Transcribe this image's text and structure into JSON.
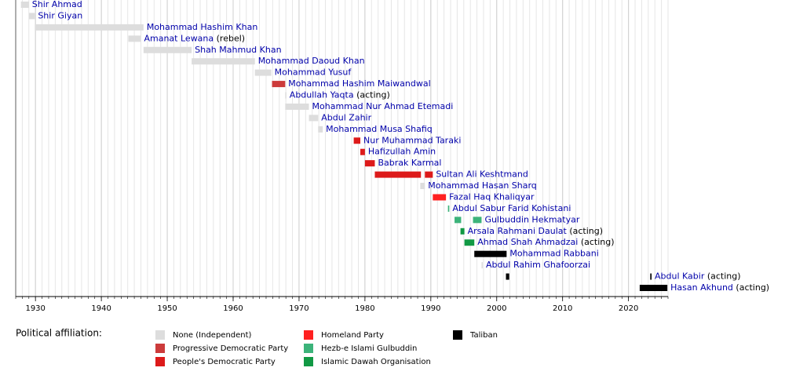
{
  "chart_data": {
    "type": "timeline",
    "xlim": [
      1927,
      2026
    ],
    "xticks": [
      1930,
      1940,
      1950,
      1960,
      1970,
      1980,
      1990,
      2000,
      2010,
      2020
    ],
    "grid": true,
    "legend_title": "Political affiliation:",
    "legend": [
      {
        "name": "None (Independent)",
        "color": "#dddddd"
      },
      {
        "name": "Progressive Democratic Party",
        "color": "#cc3b3b"
      },
      {
        "name": "People's Democratic Party",
        "color": "#dd1a1a"
      },
      {
        "name": "Homeland Party",
        "color": "#ff2020"
      },
      {
        "name": "Hezb-e Islami Gulbuddin",
        "color": "#3cb37a"
      },
      {
        "name": "Islamic Dawah Organisation",
        "color": "#119944"
      },
      {
        "name": "Taliban",
        "color": "#000000"
      }
    ],
    "series": [
      {
        "name": "Shir Ahmad",
        "color": "#dddddd",
        "ranges": [
          [
            1927.8,
            1929.0
          ]
        ]
      },
      {
        "name": "Shir Giyan",
        "color": "#dddddd",
        "ranges": [
          [
            1929.0,
            1929.9
          ]
        ]
      },
      {
        "name": "Mohammad Hashim Khan",
        "color": "#dddddd",
        "ranges": [
          [
            1929.9,
            1946.4
          ]
        ]
      },
      {
        "name": "Amanat Lewana",
        "note": "(rebel)",
        "color": "#dddddd",
        "ranges": [
          [
            1944.1,
            1946.0
          ]
        ]
      },
      {
        "name": "Shah Mahmud Khan",
        "color": "#dddddd",
        "ranges": [
          [
            1946.4,
            1953.7
          ]
        ]
      },
      {
        "name": "Mohammad Daoud Khan",
        "color": "#dddddd",
        "ranges": [
          [
            1953.7,
            1963.3
          ]
        ]
      },
      {
        "name": "Mohammad Yusuf",
        "color": "#dddddd",
        "ranges": [
          [
            1963.3,
            1965.8
          ]
        ]
      },
      {
        "name": "Mohammad Hashim Maiwandwal",
        "color": "#cc3b3b",
        "ranges": [
          [
            1965.9,
            1967.9
          ]
        ]
      },
      {
        "name": "Abdullah Yaqta",
        "note": "(acting)",
        "color": "#dddddd",
        "ranges": [
          [
            1967.9,
            1968.0
          ]
        ]
      },
      {
        "name": "Mohammad Nur Ahmad Etemadi",
        "color": "#dddddd",
        "ranges": [
          [
            1967.9,
            1971.5
          ]
        ]
      },
      {
        "name": "Abdul Zahir",
        "color": "#dddddd",
        "ranges": [
          [
            1971.5,
            1972.9
          ]
        ]
      },
      {
        "name": "Mohammad Musa Shafiq",
        "color": "#dddddd",
        "ranges": [
          [
            1972.9,
            1973.6
          ]
        ]
      },
      {
        "name": "Nur Muhammad Taraki",
        "color": "#dd1a1a",
        "ranges": [
          [
            1978.3,
            1979.3
          ]
        ]
      },
      {
        "name": "Hafizullah Amin",
        "color": "#dd1a1a",
        "ranges": [
          [
            1979.3,
            1980.0
          ]
        ]
      },
      {
        "name": "Babrak Karmal",
        "color": "#dd1a1a",
        "ranges": [
          [
            1980.0,
            1981.5
          ]
        ]
      },
      {
        "name": "Sultan Ali Keshtmand",
        "color": "#dd1a1a",
        "ranges": [
          [
            1981.5,
            1988.5
          ],
          [
            1989.1,
            1990.3
          ]
        ]
      },
      {
        "name": "Mohammad Hasan Sharq",
        "color": "#dddddd",
        "ranges": [
          [
            1988.4,
            1989.1
          ]
        ]
      },
      {
        "name": "Fazal Haq Khaliqyar",
        "color": "#ff2020",
        "ranges": [
          [
            1990.3,
            1992.3
          ]
        ]
      },
      {
        "name": "Abdul Sabur Farid Kohistani",
        "color": "#3cb37a",
        "ranges": [
          [
            1992.6,
            1992.8
          ]
        ]
      },
      {
        "name": "Gulbuddin Hekmatyar",
        "color": "#3cb37a",
        "ranges": [
          [
            1993.6,
            1994.6
          ],
          [
            1996.4,
            1997.7
          ]
        ]
      },
      {
        "name": "Arsala Rahmani Daulat",
        "note": "(acting)",
        "color": "#119944",
        "ranges": [
          [
            1994.5,
            1995.1
          ]
        ]
      },
      {
        "name": "Ahmad Shah Ahmadzai",
        "note": "(acting)",
        "color": "#119944",
        "ranges": [
          [
            1995.1,
            1996.6
          ]
        ]
      },
      {
        "name": "Mohammad Rabbani",
        "color": "#000000",
        "ranges": [
          [
            1996.6,
            2001.5
          ]
        ]
      },
      {
        "name": "Abdul Rahim Ghafoorzai",
        "color": "#dddddd",
        "ranges": [
          [
            1997.7,
            1997.8
          ]
        ]
      },
      {
        "name": "Abdul Kabir",
        "note": "(acting)",
        "color": "#000000",
        "ranges": [
          [
            2001.4,
            2001.9
          ],
          [
            2023.3,
            2023.5
          ]
        ]
      },
      {
        "name": "Hasan Akhund",
        "note": "(acting)",
        "color": "#000000",
        "ranges": [
          [
            2021.7,
            2025.9
          ]
        ]
      }
    ]
  }
}
